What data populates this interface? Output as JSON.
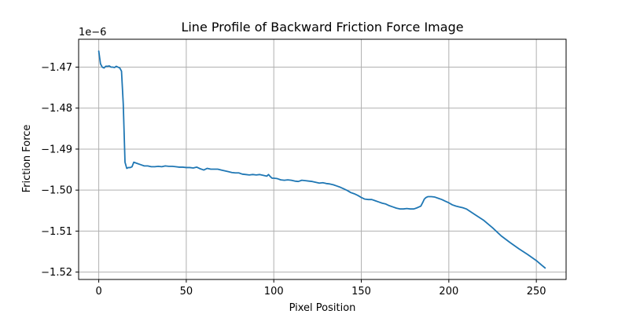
{
  "chart_data": {
    "type": "line",
    "title": "Line Profile of Backward Friction Force Image",
    "xlabel": "Pixel Position",
    "ylabel": "Friction Force",
    "offset_label": "1e−6",
    "xlim": [
      -11.5,
      267
    ],
    "ylim": [
      -1.5218,
      -1.4632
    ],
    "x_ticks": [
      0,
      50,
      100,
      150,
      200,
      250
    ],
    "x_tick_labels": [
      "0",
      "50",
      "100",
      "150",
      "200",
      "250"
    ],
    "y_ticks": [
      -1.47,
      -1.48,
      -1.49,
      -1.5,
      -1.51,
      -1.52
    ],
    "y_tick_labels": [
      "−1.47",
      "−1.48",
      "−1.49",
      "−1.50",
      "−1.51",
      "−1.52"
    ],
    "grid": true,
    "color": "#1f77b4",
    "series": [
      {
        "x": [
          0,
          1,
          2,
          3,
          4,
          5,
          6,
          7,
          8,
          9,
          10,
          11,
          12,
          13,
          14,
          15,
          16,
          17,
          18,
          19,
          20,
          22,
          24,
          26,
          28,
          30,
          32,
          34,
          36,
          38,
          40,
          42,
          44,
          46,
          48,
          50,
          52,
          54,
          56,
          58,
          60,
          62,
          64,
          66,
          68,
          70,
          72,
          74,
          76,
          78,
          80,
          82,
          84,
          86,
          88,
          90,
          92,
          94,
          96,
          97,
          98,
          99,
          100,
          102,
          104,
          106,
          108,
          110,
          112,
          114,
          116,
          118,
          120,
          122,
          124,
          126,
          128,
          130,
          132,
          134,
          136,
          138,
          140,
          142,
          144,
          146,
          148,
          150,
          152,
          154,
          156,
          158,
          160,
          162,
          164,
          166,
          168,
          170,
          172,
          174,
          176,
          178,
          180,
          182,
          184,
          185,
          186,
          187,
          188,
          190,
          192,
          194,
          196,
          198,
          200,
          202,
          204,
          206,
          208,
          210,
          215,
          220,
          225,
          230,
          235,
          240,
          245,
          250,
          253,
          255
        ],
        "y": [
          -1.4661,
          -1.4692,
          -1.47,
          -1.4702,
          -1.4698,
          -1.4698,
          -1.4697,
          -1.47,
          -1.47,
          -1.4701,
          -1.4698,
          -1.47,
          -1.4702,
          -1.471,
          -1.479,
          -1.4932,
          -1.4947,
          -1.4945,
          -1.4945,
          -1.4943,
          -1.4932,
          -1.4935,
          -1.4938,
          -1.4941,
          -1.4941,
          -1.4943,
          -1.4943,
          -1.4942,
          -1.4943,
          -1.4941,
          -1.4942,
          -1.4942,
          -1.4943,
          -1.4944,
          -1.4944,
          -1.4945,
          -1.4945,
          -1.4946,
          -1.4944,
          -1.4948,
          -1.4951,
          -1.4947,
          -1.4949,
          -1.4949,
          -1.4949,
          -1.4951,
          -1.4953,
          -1.4955,
          -1.4957,
          -1.4958,
          -1.4958,
          -1.4961,
          -1.4962,
          -1.4963,
          -1.4962,
          -1.4963,
          -1.4962,
          -1.4964,
          -1.4966,
          -1.4962,
          -1.4967,
          -1.4971,
          -1.4971,
          -1.4972,
          -1.4975,
          -1.4976,
          -1.4975,
          -1.4976,
          -1.4978,
          -1.4979,
          -1.4976,
          -1.4977,
          -1.4978,
          -1.4979,
          -1.4981,
          -1.4983,
          -1.4982,
          -1.4984,
          -1.4985,
          -1.4987,
          -1.499,
          -1.4993,
          -1.4997,
          -1.5001,
          -1.5006,
          -1.5009,
          -1.5013,
          -1.5018,
          -1.5022,
          -1.5023,
          -1.5023,
          -1.5026,
          -1.5029,
          -1.5032,
          -1.5034,
          -1.5038,
          -1.5041,
          -1.5044,
          -1.5046,
          -1.5046,
          -1.5045,
          -1.5046,
          -1.5046,
          -1.5043,
          -1.5039,
          -1.5031,
          -1.5022,
          -1.5018,
          -1.5016,
          -1.5016,
          -1.5017,
          -1.502,
          -1.5023,
          -1.5027,
          -1.5031,
          -1.5036,
          -1.5039,
          -1.5041,
          -1.5043,
          -1.5046,
          -1.506,
          -1.5074,
          -1.5092,
          -1.5112,
          -1.5128,
          -1.5143,
          -1.5157,
          -1.5172,
          -1.5183,
          -1.519
        ]
      }
    ]
  }
}
